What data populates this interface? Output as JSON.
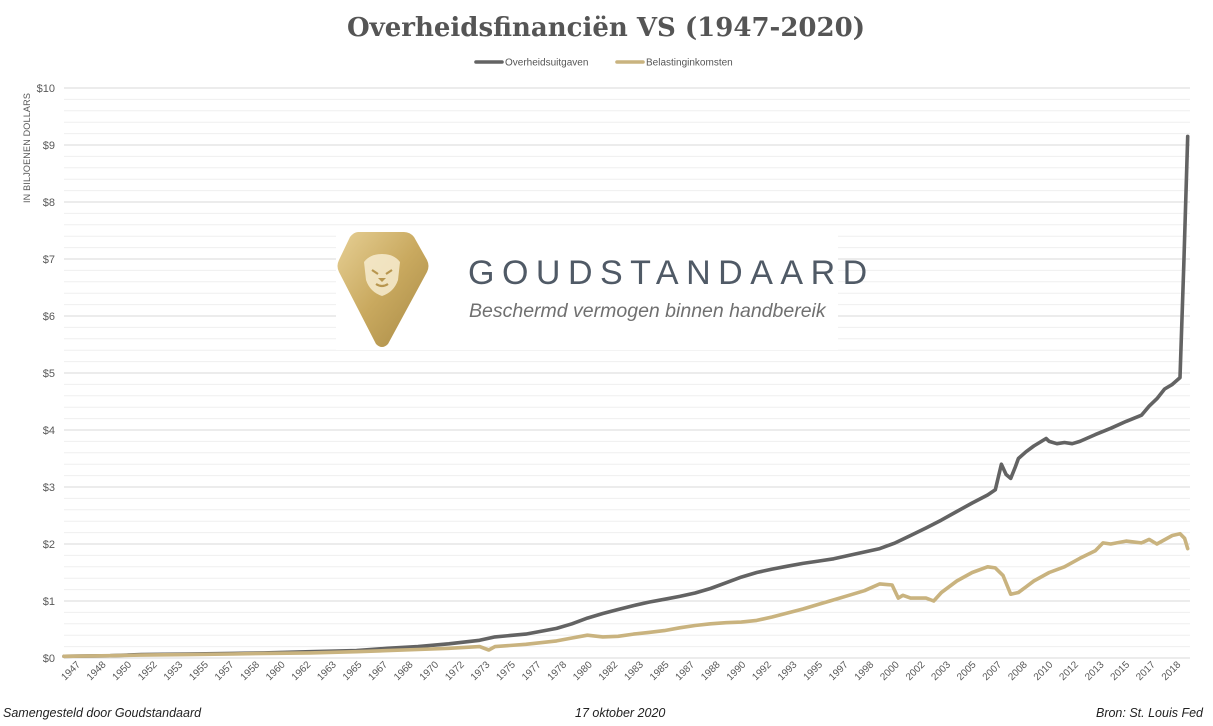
{
  "chart_data": {
    "type": "line",
    "title": "Overheidsfinanciën VS (1947-2020)",
    "ylabel": "IN BILJOENEN DOLLARS",
    "xlabel": "",
    "ylim": [
      0,
      10
    ],
    "grid": true,
    "legend_position": "top-center",
    "y_ticks": [
      "$0",
      "$1",
      "$2",
      "$3",
      "$4",
      "$5",
      "$6",
      "$7",
      "$8",
      "$9",
      "$10"
    ],
    "x_ticks": [
      "1947",
      "1948",
      "1950",
      "1952",
      "1953",
      "1955",
      "1957",
      "1958",
      "1960",
      "1962",
      "1963",
      "1965",
      "1967",
      "1968",
      "1970",
      "1972",
      "1973",
      "1975",
      "1977",
      "1978",
      "1980",
      "1982",
      "1983",
      "1985",
      "1987",
      "1988",
      "1990",
      "1992",
      "1993",
      "1995",
      "1997",
      "1998",
      "2000",
      "2002",
      "2003",
      "2005",
      "2007",
      "2008",
      "2010",
      "2012",
      "2013",
      "2015",
      "2017",
      "2018"
    ],
    "series": [
      {
        "name": "Overheidsuitgaven",
        "color": "#636363",
        "points": [
          [
            1947.0,
            0.03
          ],
          [
            1950.0,
            0.04
          ],
          [
            1952.0,
            0.06
          ],
          [
            1955.0,
            0.07
          ],
          [
            1958.0,
            0.08
          ],
          [
            1960.0,
            0.09
          ],
          [
            1963.0,
            0.11
          ],
          [
            1966.0,
            0.13
          ],
          [
            1968.0,
            0.17
          ],
          [
            1970.0,
            0.2
          ],
          [
            1972.0,
            0.25
          ],
          [
            1974.0,
            0.31
          ],
          [
            1975.0,
            0.37
          ],
          [
            1977.0,
            0.42
          ],
          [
            1979.0,
            0.52
          ],
          [
            1980.0,
            0.6
          ],
          [
            1981.0,
            0.7
          ],
          [
            1982.0,
            0.78
          ],
          [
            1983.0,
            0.85
          ],
          [
            1984.0,
            0.92
          ],
          [
            1985.0,
            0.98
          ],
          [
            1986.0,
            1.03
          ],
          [
            1987.0,
            1.08
          ],
          [
            1988.0,
            1.14
          ],
          [
            1989.0,
            1.22
          ],
          [
            1990.0,
            1.32
          ],
          [
            1991.0,
            1.42
          ],
          [
            1992.0,
            1.5
          ],
          [
            1993.0,
            1.56
          ],
          [
            1994.0,
            1.61
          ],
          [
            1995.0,
            1.66
          ],
          [
            1996.0,
            1.7
          ],
          [
            1997.0,
            1.74
          ],
          [
            1998.0,
            1.8
          ],
          [
            1999.0,
            1.86
          ],
          [
            2000.0,
            1.92
          ],
          [
            2001.0,
            2.02
          ],
          [
            2002.0,
            2.15
          ],
          [
            2003.0,
            2.28
          ],
          [
            2004.0,
            2.42
          ],
          [
            2005.0,
            2.57
          ],
          [
            2006.0,
            2.72
          ],
          [
            2007.0,
            2.86
          ],
          [
            2007.5,
            2.95
          ],
          [
            2007.9,
            3.4
          ],
          [
            2008.2,
            3.22
          ],
          [
            2008.5,
            3.15
          ],
          [
            2008.8,
            3.35
          ],
          [
            2009.0,
            3.5
          ],
          [
            2009.5,
            3.62
          ],
          [
            2010.0,
            3.72
          ],
          [
            2010.8,
            3.85
          ],
          [
            2011.0,
            3.8
          ],
          [
            2011.5,
            3.76
          ],
          [
            2012.0,
            3.78
          ],
          [
            2012.5,
            3.76
          ],
          [
            2013.0,
            3.8
          ],
          [
            2014.0,
            3.92
          ],
          [
            2015.0,
            4.03
          ],
          [
            2016.0,
            4.15
          ],
          [
            2017.0,
            4.26
          ],
          [
            2017.5,
            4.42
          ],
          [
            2018.0,
            4.55
          ],
          [
            2018.5,
            4.72
          ],
          [
            2019.0,
            4.8
          ],
          [
            2019.5,
            4.92
          ],
          [
            2019.75,
            6.9
          ],
          [
            2020.0,
            9.15
          ]
        ]
      },
      {
        "name": "Belastinginkomsten",
        "color": "#c9b37f",
        "points": [
          [
            1947.0,
            0.03
          ],
          [
            1950.0,
            0.04
          ],
          [
            1952.0,
            0.05
          ],
          [
            1955.0,
            0.06
          ],
          [
            1958.0,
            0.07
          ],
          [
            1960.0,
            0.08
          ],
          [
            1963.0,
            0.09
          ],
          [
            1966.0,
            0.11
          ],
          [
            1968.0,
            0.13
          ],
          [
            1970.0,
            0.15
          ],
          [
            1972.0,
            0.17
          ],
          [
            1974.0,
            0.2
          ],
          [
            1974.6,
            0.14
          ],
          [
            1975.0,
            0.2
          ],
          [
            1977.0,
            0.24
          ],
          [
            1979.0,
            0.3
          ],
          [
            1980.0,
            0.35
          ],
          [
            1981.0,
            0.4
          ],
          [
            1982.0,
            0.37
          ],
          [
            1983.0,
            0.38
          ],
          [
            1984.0,
            0.42
          ],
          [
            1985.0,
            0.45
          ],
          [
            1986.0,
            0.48
          ],
          [
            1987.0,
            0.53
          ],
          [
            1988.0,
            0.57
          ],
          [
            1989.0,
            0.6
          ],
          [
            1990.0,
            0.62
          ],
          [
            1991.0,
            0.63
          ],
          [
            1992.0,
            0.66
          ],
          [
            1993.0,
            0.72
          ],
          [
            1994.0,
            0.79
          ],
          [
            1995.0,
            0.86
          ],
          [
            1996.0,
            0.94
          ],
          [
            1997.0,
            1.02
          ],
          [
            1998.0,
            1.1
          ],
          [
            1999.0,
            1.18
          ],
          [
            2000.0,
            1.3
          ],
          [
            2000.8,
            1.28
          ],
          [
            2001.2,
            1.05
          ],
          [
            2001.5,
            1.1
          ],
          [
            2002.0,
            1.05
          ],
          [
            2003.0,
            1.05
          ],
          [
            2003.5,
            1.0
          ],
          [
            2004.0,
            1.15
          ],
          [
            2005.0,
            1.35
          ],
          [
            2006.0,
            1.5
          ],
          [
            2007.0,
            1.6
          ],
          [
            2007.5,
            1.58
          ],
          [
            2008.0,
            1.45
          ],
          [
            2008.5,
            1.12
          ],
          [
            2009.0,
            1.15
          ],
          [
            2009.5,
            1.25
          ],
          [
            2010.0,
            1.35
          ],
          [
            2011.0,
            1.5
          ],
          [
            2012.0,
            1.6
          ],
          [
            2013.0,
            1.75
          ],
          [
            2014.0,
            1.88
          ],
          [
            2014.5,
            2.02
          ],
          [
            2015.0,
            2.0
          ],
          [
            2016.0,
            2.05
          ],
          [
            2017.0,
            2.02
          ],
          [
            2017.5,
            2.08
          ],
          [
            2018.0,
            2.0
          ],
          [
            2019.0,
            2.15
          ],
          [
            2019.5,
            2.18
          ],
          [
            2019.8,
            2.1
          ],
          [
            2020.0,
            1.92
          ]
        ]
      }
    ]
  },
  "logo": {
    "brand": "GOUDSTANDAARD",
    "tagline": "Beschermd vermogen binnen handbereik",
    "icon": "lion-shield-icon"
  },
  "footer": {
    "left": "Samengesteld door Goudstandaard",
    "center": "17 oktober 2020",
    "right": "Bron: St. Louis Fed"
  }
}
